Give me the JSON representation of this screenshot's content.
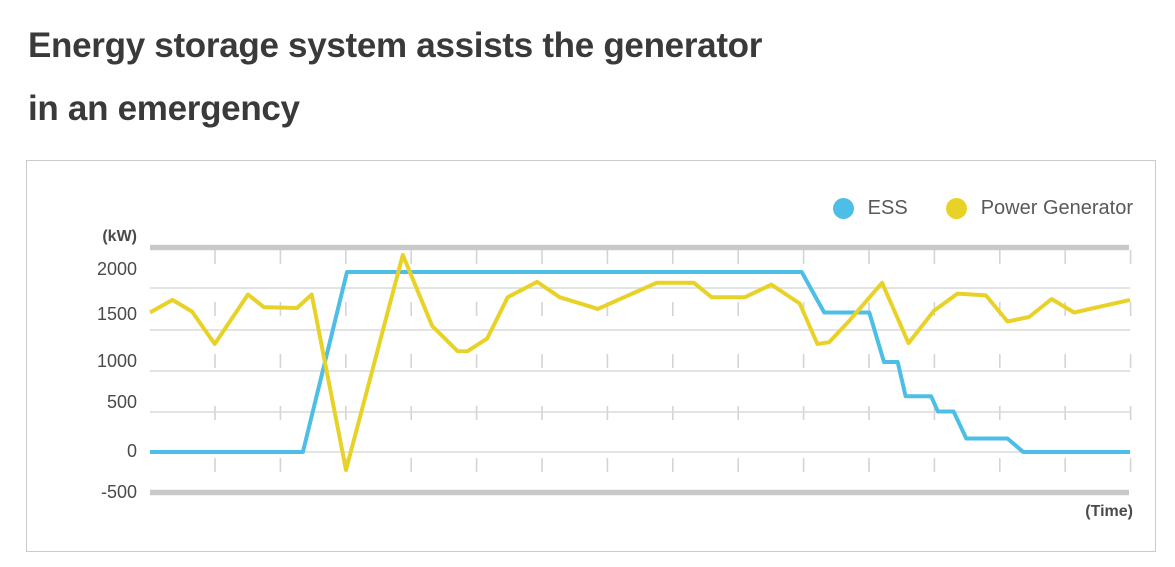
{
  "title": {
    "line1": "Energy storage system assists the generator",
    "line2": "in an emergency"
  },
  "legend": [
    {
      "label": "ESS",
      "color": "#4dbfe6"
    },
    {
      "label": "Power Generator",
      "color": "#e9d227"
    }
  ],
  "axis": {
    "unit_label": "(kW)",
    "time_label": "(Time)",
    "yticks": [
      "2000",
      "1500",
      "1000",
      "500",
      "0",
      "-500"
    ]
  },
  "colors": {
    "ess_line": "#4dbfe6",
    "generator_line": "#e9d227",
    "grid_thin": "#dadada",
    "grid_dashed": "#d4d4d4",
    "axis_rail": "#c9c9c9",
    "title_text": "#3a3a3a",
    "tick_text": "#4a4a4a",
    "legend_text": "#595959",
    "card_border": "#cbcbcb"
  },
  "chart_data": {
    "type": "line",
    "title": "Energy storage system assists the generator in an emergency",
    "xlabel": "(Time)",
    "ylabel": "(kW)",
    "ylim": [
      -500,
      2500
    ],
    "yticks": [
      2000,
      1500,
      1000,
      500,
      0,
      -500
    ],
    "x_axis_note": "unlabeled time axis; point x given as fraction 0-1 of plot width",
    "grid": "horizontal solid lines every 500 kW, vertical dashed time gridlines, thick gray rails at top and bottom",
    "legend_position": "top-right",
    "series": [
      {
        "name": "ESS",
        "color": "#4dbfe6",
        "points_kw": [
          [
            0.0,
            0
          ],
          [
            0.156,
            0
          ],
          [
            0.201,
            2000
          ],
          [
            0.665,
            2000
          ],
          [
            0.688,
            1550
          ],
          [
            0.734,
            1550
          ],
          [
            0.749,
            1000
          ],
          [
            0.763,
            1000
          ],
          [
            0.771,
            620
          ],
          [
            0.797,
            620
          ],
          [
            0.804,
            450
          ],
          [
            0.82,
            450
          ],
          [
            0.833,
            150
          ],
          [
            0.875,
            150
          ],
          [
            0.891,
            0
          ],
          [
            1.0,
            0
          ]
        ]
      },
      {
        "name": "Power Generator",
        "color": "#e9d227",
        "points_kw": [
          [
            0.0,
            1550
          ],
          [
            0.023,
            1690
          ],
          [
            0.043,
            1560
          ],
          [
            0.066,
            1200
          ],
          [
            0.1,
            1750
          ],
          [
            0.116,
            1610
          ],
          [
            0.15,
            1600
          ],
          [
            0.165,
            1750
          ],
          [
            0.2,
            -200
          ],
          [
            0.258,
            2190
          ],
          [
            0.288,
            1400
          ],
          [
            0.314,
            1120
          ],
          [
            0.324,
            1120
          ],
          [
            0.344,
            1260
          ],
          [
            0.365,
            1720
          ],
          [
            0.395,
            1890
          ],
          [
            0.418,
            1720
          ],
          [
            0.457,
            1590
          ],
          [
            0.517,
            1880
          ],
          [
            0.555,
            1880
          ],
          [
            0.573,
            1720
          ],
          [
            0.607,
            1720
          ],
          [
            0.634,
            1860
          ],
          [
            0.663,
            1650
          ],
          [
            0.681,
            1200
          ],
          [
            0.693,
            1220
          ],
          [
            0.712,
            1440
          ],
          [
            0.747,
            1880
          ],
          [
            0.774,
            1210
          ],
          [
            0.8,
            1570
          ],
          [
            0.824,
            1760
          ],
          [
            0.853,
            1740
          ],
          [
            0.875,
            1450
          ],
          [
            0.897,
            1500
          ],
          [
            0.92,
            1700
          ],
          [
            0.943,
            1550
          ],
          [
            1.0,
            1690
          ]
        ]
      }
    ]
  }
}
